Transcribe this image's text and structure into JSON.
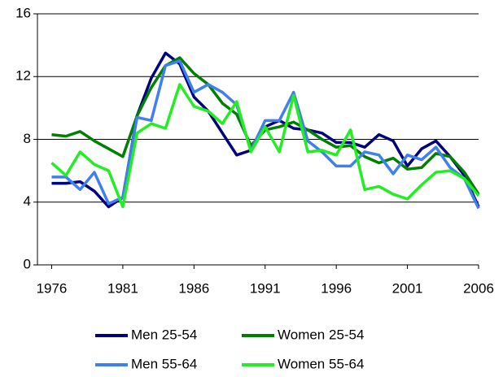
{
  "chart_data": {
    "type": "line",
    "x": [
      1976,
      1977,
      1978,
      1979,
      1980,
      1981,
      1982,
      1983,
      1984,
      1985,
      1986,
      1987,
      1988,
      1989,
      1990,
      1991,
      1992,
      1993,
      1994,
      1995,
      1996,
      1997,
      1998,
      1999,
      2000,
      2001,
      2002,
      2003,
      2004,
      2005,
      2006
    ],
    "xlim": [
      1975,
      2006
    ],
    "xticks": [
      1976,
      1981,
      1986,
      1991,
      1996,
      2001,
      2006
    ],
    "ylim": [
      0,
      16
    ],
    "yticks": [
      0,
      4,
      8,
      12,
      16
    ],
    "grid": true,
    "legend": "bottom",
    "series": [
      {
        "name": "Men 25-54",
        "color": "#000080",
        "values": [
          5.2,
          5.2,
          5.3,
          4.7,
          3.7,
          4.3,
          9.5,
          11.9,
          13.5,
          12.8,
          10.7,
          9.8,
          8.4,
          7.0,
          7.3,
          8.8,
          9.2,
          8.7,
          8.6,
          8.4,
          7.8,
          7.8,
          7.5,
          8.3,
          7.9,
          6.3,
          7.4,
          7.9,
          6.9,
          5.7,
          3.7
        ]
      },
      {
        "name": "Women 25-54",
        "color": "#008000",
        "values": [
          8.3,
          8.2,
          8.5,
          7.9,
          7.4,
          6.9,
          9.5,
          11.3,
          12.7,
          13.2,
          12.2,
          11.5,
          10.3,
          9.6,
          7.6,
          8.6,
          8.8,
          9.1,
          8.6,
          8.0,
          7.5,
          7.6,
          6.9,
          6.5,
          6.8,
          6.1,
          6.2,
          7.1,
          6.9,
          5.9,
          4.5
        ]
      },
      {
        "name": "Men 55-64",
        "color": "#3f7ff0",
        "values": [
          5.6,
          5.6,
          4.8,
          5.9,
          3.9,
          4.3,
          9.4,
          9.2,
          12.7,
          13.0,
          11.0,
          11.5,
          11.0,
          10.2,
          7.3,
          9.2,
          9.2,
          11.0,
          7.9,
          7.2,
          6.3,
          6.3,
          7.2,
          7.0,
          5.8,
          7.0,
          6.7,
          7.5,
          6.2,
          5.5,
          3.6
        ]
      },
      {
        "name": "Women 55-64",
        "color": "#22ee22",
        "values": [
          6.5,
          5.7,
          7.2,
          6.4,
          6.0,
          3.7,
          8.4,
          9.0,
          8.7,
          11.5,
          10.1,
          9.8,
          9.0,
          10.4,
          7.2,
          8.8,
          7.2,
          10.8,
          7.2,
          7.3,
          7.0,
          8.6,
          4.8,
          5.0,
          4.5,
          4.2,
          5.1,
          5.9,
          6.0,
          5.5,
          4.4
        ]
      }
    ]
  }
}
